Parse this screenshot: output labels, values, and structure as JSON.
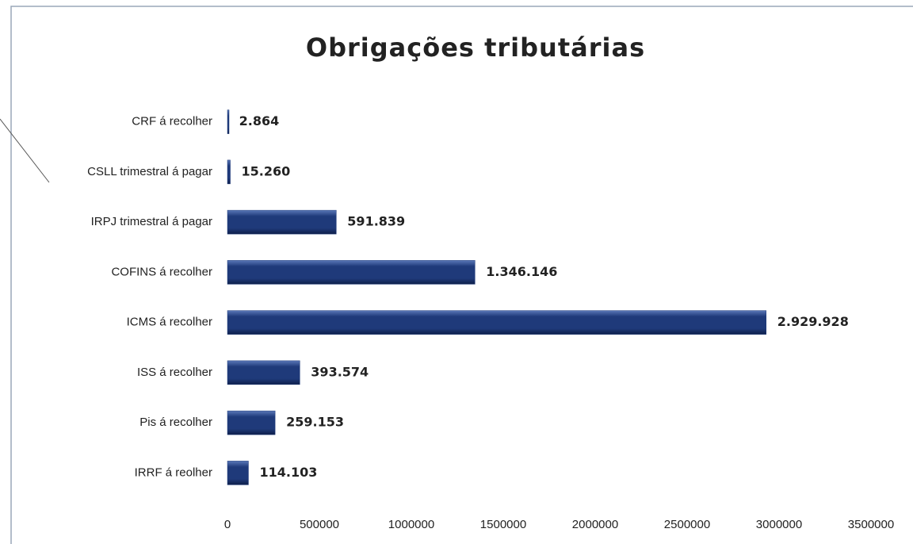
{
  "chart_data": {
    "type": "bar",
    "orientation": "horizontal",
    "title": "Obrigações tributárias",
    "categories": [
      "CRF á recolher",
      "CSLL trimestral á pagar",
      "IRPJ trimestral á pagar",
      "COFINS á recolher",
      "ICMS á recolher",
      "ISS á recolher",
      "Pis á recolher",
      "IRRF á reolher"
    ],
    "values": [
      2864,
      15260,
      591839,
      1346146,
      2929928,
      393574,
      259153,
      114103
    ],
    "value_labels": [
      "2.864",
      "15.260",
      "591.839",
      "1.346.146",
      "2.929.928",
      "393.574",
      "259.153",
      "114.103"
    ],
    "color": "#1f3a7a",
    "xlim": [
      0,
      3500000
    ],
    "xticks": [
      0,
      500000,
      1000000,
      1500000,
      2000000,
      2500000,
      3000000,
      3500000
    ],
    "grid": false
  }
}
